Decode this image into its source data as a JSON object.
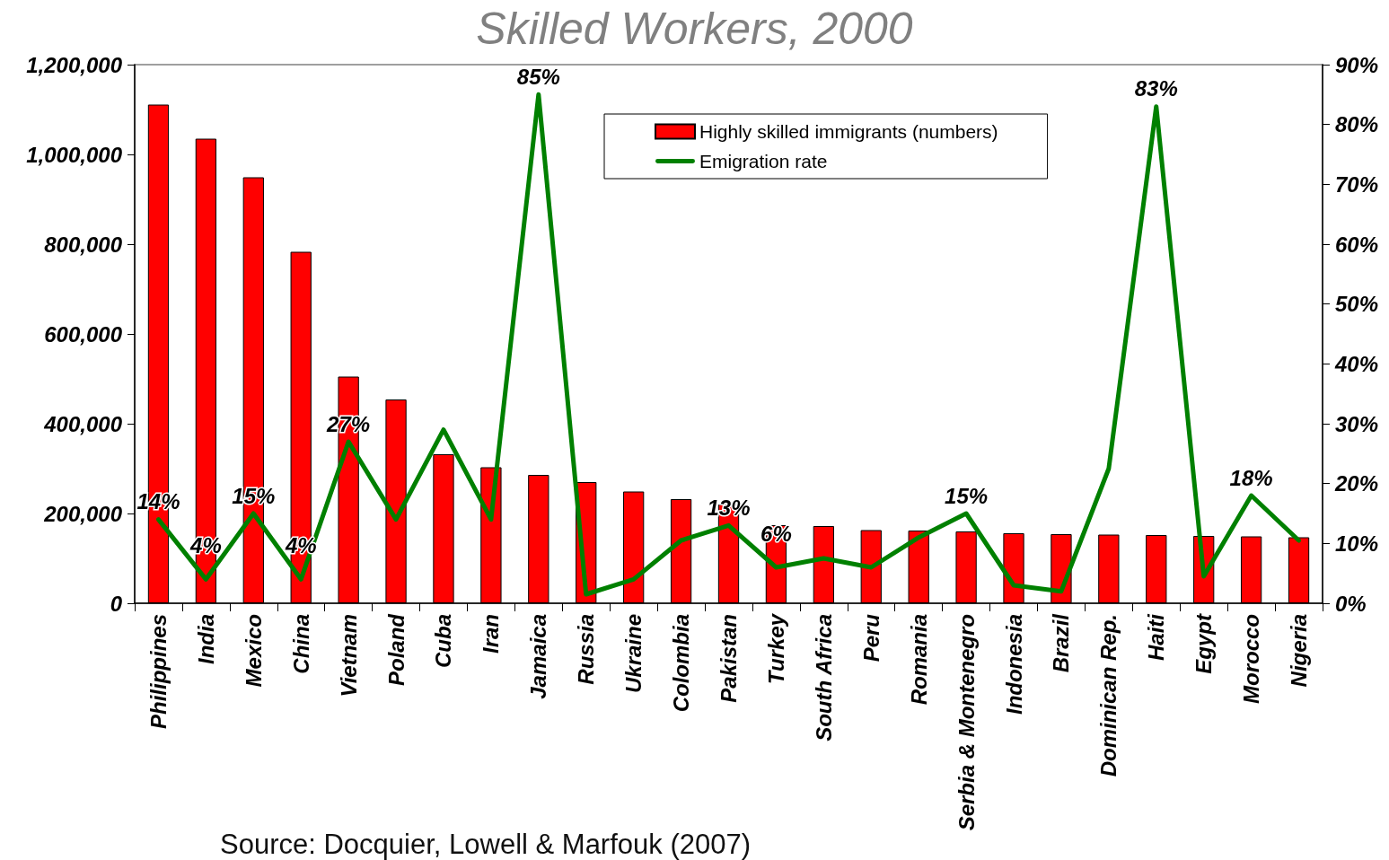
{
  "chart_data": {
    "type": "bar",
    "title": "Skilled Workers, 2000",
    "categories": [
      "Philippines",
      "India",
      "Mexico",
      "China",
      "Vietnam",
      "Poland",
      "Cuba",
      "Iran",
      "Jamaica",
      "Russia",
      "Ukraine",
      "Colombia",
      "Pakistan",
      "Turkey",
      "South Africa",
      "Peru",
      "Romania",
      "Serbia & Montenegro",
      "Indonesia",
      "Brazil",
      "Dominican Rep.",
      "Haiti",
      "Egypt",
      "Morocco",
      "Nigeria"
    ],
    "series": [
      {
        "name": "Highly skilled immigrants (numbers)",
        "color": "#ff0000",
        "values": [
          1111000,
          1035000,
          949000,
          783000,
          505000,
          454000,
          332000,
          303000,
          286000,
          270000,
          249000,
          232000,
          220000,
          174000,
          172000,
          163000,
          162000,
          160000,
          156000,
          154000,
          153000,
          152000,
          150000,
          149000,
          147000
        ]
      },
      {
        "name": "Emigration rate",
        "type": "line",
        "axis": "y2",
        "color": "#008000",
        "values": [
          14,
          4,
          15,
          4,
          27,
          14,
          29,
          14,
          85,
          1.5,
          4,
          10.5,
          13,
          6,
          7.5,
          6,
          11,
          15,
          3,
          2,
          22.5,
          83,
          4.5,
          18,
          10.5
        ],
        "value_labels": [
          "14%",
          "4%",
          "15%",
          "4%",
          "27%",
          null,
          null,
          null,
          "85%",
          null,
          null,
          null,
          "13%",
          "6%",
          null,
          null,
          null,
          "15%",
          null,
          null,
          null,
          "83%",
          null,
          "18%",
          null
        ]
      }
    ],
    "ylim": [
      0,
      1200000
    ],
    "yticks": [
      0,
      {
        "value": 200000,
        "label": "200,000"
      },
      {
        "value": 400000,
        "label": "400,000"
      },
      {
        "value": 600000,
        "label": "600,000"
      },
      {
        "value": 800000,
        "label": "800,000"
      },
      {
        "value": 1000000,
        "label": "1,000,000"
      },
      {
        "value": 1200000,
        "label": "1,200,000"
      }
    ],
    "y2lim": [
      0,
      90
    ],
    "y2ticks": [
      {
        "value": 0,
        "label": "0%"
      },
      {
        "value": 10,
        "label": "10%"
      },
      {
        "value": 20,
        "label": "20%"
      },
      {
        "value": 30,
        "label": "30%"
      },
      {
        "value": 40,
        "label": "40%"
      },
      {
        "value": 50,
        "label": "50%"
      },
      {
        "value": 60,
        "label": "60%"
      },
      {
        "value": 70,
        "label": "70%"
      },
      {
        "value": 80,
        "label": "80%"
      },
      {
        "value": 90,
        "label": "90%"
      }
    ],
    "legend": "top",
    "annotations": [
      "Source: Docquier, Lowell & Marfouk (2007)"
    ]
  }
}
